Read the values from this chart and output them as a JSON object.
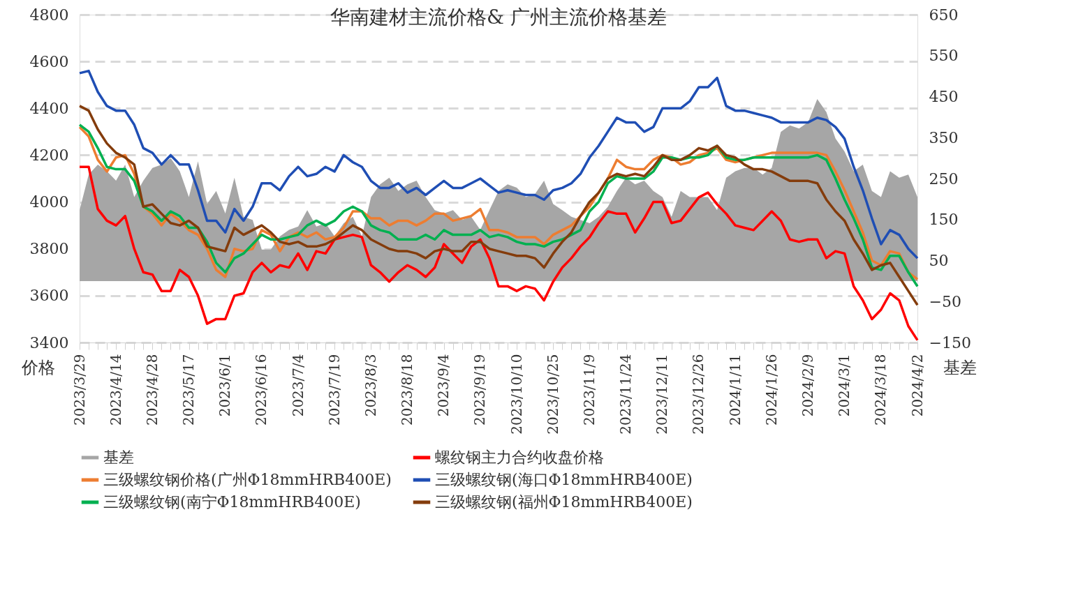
{
  "chart_data": {
    "type": "line",
    "title": "华南建材主流价格& 广州主流价格基差",
    "ylabel": "价格",
    "y2label": "基差",
    "categories": [
      "2023/3/29",
      null,
      null,
      null,
      "2023/4/14",
      null,
      null,
      null,
      "2023/4/28",
      null,
      null,
      null,
      "2023/5/17",
      null,
      null,
      null,
      "2023/6/1",
      null,
      null,
      null,
      "2023/6/16",
      null,
      null,
      null,
      "2023/7/4",
      null,
      null,
      null,
      "2023/7/19",
      null,
      null,
      null,
      "2023/8/3",
      null,
      null,
      null,
      "2023/8/18",
      null,
      null,
      null,
      "2023/9/4",
      null,
      null,
      null,
      "2023/9/19",
      null,
      null,
      null,
      "2023/10/10",
      null,
      null,
      null,
      "2023/10/25",
      null,
      null,
      null,
      "2023/11/9",
      null,
      null,
      null,
      "2023/11/24",
      null,
      null,
      null,
      "2023/12/11",
      null,
      null,
      null,
      "2023/12/26",
      null,
      null,
      null,
      "2024/1/11",
      null,
      null,
      null,
      "2024/1/26",
      null,
      null,
      null,
      "2024/2/9",
      null,
      null,
      null,
      "2024/3/1",
      null,
      null,
      null,
      "2024/3/18",
      null,
      null,
      null,
      "2024/4/2"
    ],
    "ylim": [
      3400,
      4800
    ],
    "yticks": [
      3400,
      3600,
      3800,
      4000,
      4200,
      4400,
      4600,
      4800
    ],
    "y2lim": [
      -150,
      650
    ],
    "y2ticks": [
      -150,
      -50,
      50,
      150,
      250,
      350,
      450,
      550,
      650
    ],
    "grid": "y",
    "legend": "bottom",
    "line_style": "solid",
    "series": [
      {
        "name": "基差",
        "type": "area",
        "axis": "y2",
        "color": "#a6a6a6",
        "values": [
          173,
          260,
          284,
          268,
          245,
          284,
          205,
          245,
          276,
          284,
          300,
          268,
          205,
          292,
          188,
          220,
          165,
          252,
          157,
          149,
          77,
          77,
          109,
          125,
          133,
          173,
          133,
          141,
          109,
          141,
          157,
          109,
          205,
          236,
          252,
          220,
          236,
          245,
          205,
          173,
          165,
          173,
          149,
          157,
          125,
          173,
          220,
          236,
          228,
          205,
          212,
          245,
          188,
          173,
          157,
          149,
          141,
          157,
          181,
          220,
          252,
          236,
          245,
          220,
          205,
          157,
          220,
          205,
          205,
          205,
          173,
          252,
          268,
          276,
          276,
          260,
          276,
          364,
          380,
          372,
          388,
          444,
          412,
          348,
          316,
          268,
          284,
          220,
          205,
          268,
          252,
          260,
          205
        ]
      },
      {
        "name": "螺纹钢主力合约收盘价格",
        "color": "#ff0000",
        "values": [
          4150,
          4150,
          3970,
          3920,
          3900,
          3940,
          3800,
          3700,
          3690,
          3620,
          3620,
          3710,
          3680,
          3600,
          3480,
          3500,
          3500,
          3600,
          3610,
          3700,
          3740,
          3700,
          3730,
          3720,
          3780,
          3710,
          3790,
          3780,
          3840,
          3850,
          3860,
          3850,
          3730,
          3700,
          3660,
          3700,
          3730,
          3710,
          3680,
          3720,
          3820,
          3780,
          3740,
          3810,
          3840,
          3760,
          3640,
          3640,
          3620,
          3640,
          3630,
          3580,
          3660,
          3720,
          3760,
          3810,
          3850,
          3910,
          3960,
          3950,
          3950,
          3870,
          3930,
          4000,
          4000,
          3910,
          3920,
          3970,
          4020,
          4040,
          3990,
          3950,
          3900,
          3890,
          3880,
          3920,
          3960,
          3920,
          3840,
          3830,
          3840,
          3840,
          3760,
          3790,
          3780,
          3640,
          3580,
          3500,
          3540,
          3610,
          3580,
          3470,
          3410
        ]
      },
      {
        "name": "三级螺纹钢价格(广州Φ18mmHRB400E)",
        "color": "#ed7d31",
        "values": [
          4320,
          4280,
          4180,
          4130,
          4190,
          4200,
          4120,
          3980,
          3950,
          3900,
          3950,
          3920,
          3880,
          3860,
          3800,
          3710,
          3680,
          3800,
          3790,
          3800,
          3880,
          3860,
          3790,
          3850,
          3870,
          3850,
          3870,
          3840,
          3850,
          3890,
          3960,
          3960,
          3930,
          3930,
          3900,
          3920,
          3920,
          3900,
          3920,
          3950,
          3950,
          3920,
          3930,
          3940,
          3970,
          3880,
          3880,
          3870,
          3850,
          3850,
          3850,
          3820,
          3860,
          3880,
          3900,
          3940,
          3980,
          4040,
          4100,
          4180,
          4150,
          4140,
          4140,
          4180,
          4200,
          4190,
          4160,
          4170,
          4200,
          4210,
          4230,
          4180,
          4170,
          4180,
          4190,
          4200,
          4210,
          4210,
          4210,
          4210,
          4210,
          4210,
          4200,
          4130,
          4050,
          3960,
          3870,
          3750,
          3730,
          3790,
          3780,
          3700,
          3670
        ]
      },
      {
        "name": "三级螺纹钢(海口Φ18mmHRB400E)",
        "color": "#1f4eb4",
        "values": [
          4550,
          4560,
          4470,
          4410,
          4390,
          4390,
          4330,
          4230,
          4210,
          4160,
          4200,
          4160,
          4160,
          4050,
          3920,
          3920,
          3870,
          3970,
          3920,
          3980,
          4080,
          4080,
          4050,
          4110,
          4150,
          4110,
          4120,
          4150,
          4130,
          4200,
          4170,
          4150,
          4090,
          4060,
          4060,
          4080,
          4040,
          4060,
          4030,
          4060,
          4090,
          4060,
          4060,
          4080,
          4100,
          4070,
          4040,
          4050,
          4040,
          4030,
          4030,
          4010,
          4050,
          4060,
          4080,
          4120,
          4190,
          4240,
          4300,
          4360,
          4340,
          4340,
          4300,
          4320,
          4400,
          4400,
          4400,
          4430,
          4490,
          4490,
          4530,
          4410,
          4390,
          4390,
          4380,
          4370,
          4360,
          4340,
          4340,
          4340,
          4340,
          4360,
          4350,
          4320,
          4270,
          4150,
          4050,
          3930,
          3820,
          3880,
          3860,
          3800,
          3760
        ]
      },
      {
        "name": "三级螺纹钢(南宁Φ18mmHRB400E)",
        "color": "#00b050",
        "values": [
          4330,
          4300,
          4230,
          4150,
          4140,
          4140,
          4090,
          3980,
          3960,
          3920,
          3960,
          3940,
          3890,
          3890,
          3830,
          3740,
          3700,
          3760,
          3780,
          3820,
          3860,
          3840,
          3840,
          3850,
          3860,
          3900,
          3920,
          3900,
          3920,
          3960,
          3980,
          3960,
          3900,
          3880,
          3870,
          3840,
          3840,
          3840,
          3860,
          3840,
          3880,
          3860,
          3860,
          3860,
          3880,
          3850,
          3860,
          3850,
          3830,
          3820,
          3820,
          3810,
          3830,
          3840,
          3860,
          3880,
          3960,
          4000,
          4080,
          4110,
          4100,
          4100,
          4100,
          4130,
          4190,
          4190,
          4180,
          4190,
          4190,
          4200,
          4240,
          4190,
          4180,
          4180,
          4190,
          4190,
          4190,
          4190,
          4190,
          4190,
          4190,
          4200,
          4180,
          4100,
          4010,
          3930,
          3840,
          3720,
          3710,
          3770,
          3770,
          3700,
          3640
        ]
      },
      {
        "name": "三级螺纹钢(福州Φ18mmHRB400E)",
        "color": "#843c0c",
        "values": [
          4410,
          4390,
          4310,
          4250,
          4210,
          4190,
          4160,
          3980,
          3990,
          3950,
          3910,
          3900,
          3920,
          3890,
          3810,
          3800,
          3790,
          3890,
          3860,
          3880,
          3900,
          3870,
          3830,
          3820,
          3830,
          3810,
          3810,
          3820,
          3840,
          3870,
          3900,
          3880,
          3840,
          3820,
          3800,
          3790,
          3790,
          3780,
          3760,
          3790,
          3800,
          3790,
          3790,
          3830,
          3830,
          3800,
          3790,
          3780,
          3770,
          3770,
          3760,
          3720,
          3780,
          3830,
          3870,
          3940,
          4000,
          4040,
          4100,
          4120,
          4110,
          4120,
          4110,
          4150,
          4200,
          4180,
          4180,
          4200,
          4230,
          4220,
          4240,
          4200,
          4190,
          4160,
          4140,
          4140,
          4130,
          4110,
          4090,
          4090,
          4090,
          4080,
          4010,
          3960,
          3920,
          3840,
          3780,
          3710,
          3730,
          3740,
          3680,
          3620,
          3560
        ]
      }
    ]
  }
}
